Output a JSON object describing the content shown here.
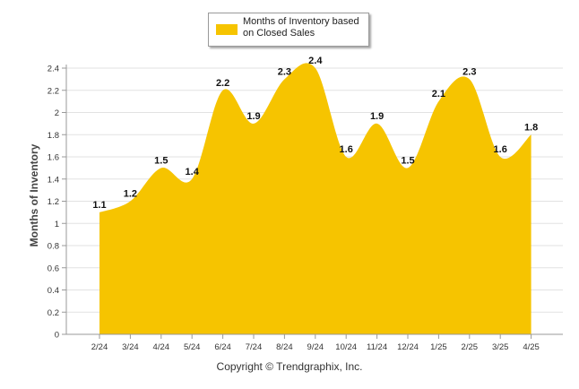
{
  "chart_data": {
    "type": "area",
    "categories": [
      "2/24",
      "3/24",
      "4/24",
      "5/24",
      "6/24",
      "7/24",
      "8/24",
      "9/24",
      "10/24",
      "11/24",
      "12/24",
      "1/25",
      "2/25",
      "3/25",
      "4/25"
    ],
    "series": [
      {
        "name": "Months of Inventory based on Closed Sales",
        "values": [
          1.1,
          1.2,
          1.5,
          1.4,
          2.2,
          1.9,
          2.3,
          2.4,
          1.6,
          1.9,
          1.5,
          2.1,
          2.3,
          1.6,
          1.8
        ]
      }
    ],
    "data_labels": [
      "1.1",
      "1.2",
      "1.5",
      "1.4",
      "2.2",
      "1.9",
      "2.3",
      "2.4",
      "1.6",
      "1.9",
      "1.5",
      "2.1",
      "2.3",
      "1.6",
      "1.8"
    ],
    "ylabel": "Months of Inventory",
    "ylim": [
      0,
      2.4
    ],
    "yticks": [
      "0",
      "0.2",
      "0.4",
      "0.6",
      "0.8",
      "1",
      "1.2",
      "1.4",
      "1.6",
      "1.8",
      "2",
      "2.2",
      "2.4"
    ],
    "grid": true,
    "legend_position": "top-center",
    "fill_color": "#f6c400"
  },
  "legend": {
    "label": "Months of Inventory based on Closed Sales"
  },
  "footer": {
    "text": "Copyright © Trendgraphix, Inc."
  }
}
